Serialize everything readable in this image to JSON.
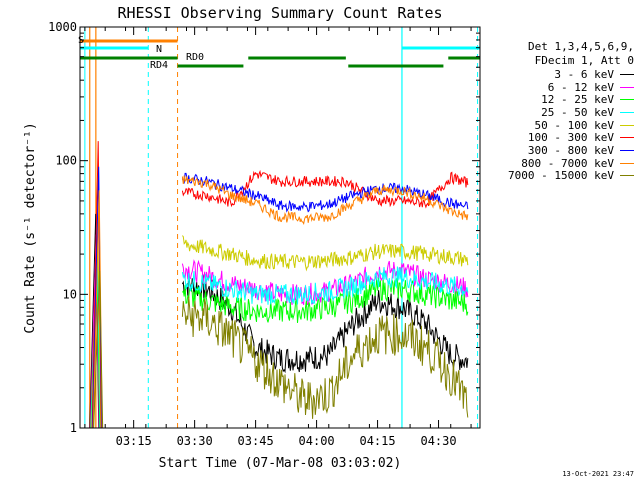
{
  "chart_data": {
    "type": "line",
    "title": "RHESSI Observing Summary Count Rates",
    "xlabel": "Start Time (07-Mar-08 03:03:02)",
    "ylabel": "Count Rate (s⁻¹ detector⁻¹)",
    "yscale": "log",
    "ylim": [
      1,
      1000
    ],
    "xlim_minutes": [
      3.03,
      4.67
    ],
    "yticks": [
      {
        "value": 1,
        "label": "1"
      },
      {
        "value": 10,
        "label": "10"
      },
      {
        "value": 100,
        "label": "100"
      },
      {
        "value": 1000,
        "label": "1000"
      }
    ],
    "xticks": [
      {
        "t": 3.25,
        "label": "03:15"
      },
      {
        "t": 3.5,
        "label": "03:30"
      },
      {
        "t": 3.75,
        "label": "03:45"
      },
      {
        "t": 4.0,
        "label": "04:00"
      },
      {
        "t": 4.25,
        "label": "04:15"
      },
      {
        "t": 4.5,
        "label": "04:30"
      }
    ],
    "legend_header": [
      "Det 1,3,4,5,6,9,",
      "FDecim 1, Att 0"
    ],
    "series": [
      {
        "name": "3 - 6 keV",
        "color": "#000000",
        "points": [
          [
            3.45,
            12
          ],
          [
            3.55,
            11
          ],
          [
            3.65,
            8
          ],
          [
            3.75,
            4
          ],
          [
            3.85,
            3.3
          ],
          [
            3.95,
            3.3
          ],
          [
            4.05,
            3.5
          ],
          [
            4.15,
            6
          ],
          [
            4.25,
            9
          ],
          [
            4.35,
            8
          ],
          [
            4.45,
            6
          ],
          [
            4.55,
            3.5
          ],
          [
            4.62,
            3.2
          ]
        ]
      },
      {
        "name": "6 - 12 keV",
        "color": "#ff00ff",
        "points": [
          [
            3.45,
            16
          ],
          [
            3.55,
            14
          ],
          [
            3.65,
            12
          ],
          [
            3.75,
            11
          ],
          [
            3.85,
            10
          ],
          [
            3.95,
            10
          ],
          [
            4.05,
            10.5
          ],
          [
            4.15,
            12
          ],
          [
            4.25,
            15
          ],
          [
            4.35,
            15
          ],
          [
            4.45,
            13
          ],
          [
            4.55,
            12
          ],
          [
            4.62,
            11
          ]
        ]
      },
      {
        "name": "12 - 25 keV",
        "color": "#00ff00",
        "points": [
          [
            3.45,
            10
          ],
          [
            3.55,
            9
          ],
          [
            3.65,
            8
          ],
          [
            3.75,
            7.5
          ],
          [
            3.85,
            7.5
          ],
          [
            3.95,
            7.5
          ],
          [
            4.05,
            8
          ],
          [
            4.15,
            9
          ],
          [
            4.25,
            11
          ],
          [
            4.35,
            11
          ],
          [
            4.45,
            10
          ],
          [
            4.55,
            9
          ],
          [
            4.62,
            8.5
          ]
        ]
      },
      {
        "name": "25 - 50 keV",
        "color": "#00ffff",
        "points": [
          [
            3.45,
            13
          ],
          [
            3.55,
            12
          ],
          [
            3.65,
            11
          ],
          [
            3.75,
            10
          ],
          [
            3.85,
            10
          ],
          [
            3.95,
            10
          ],
          [
            4.05,
            10.5
          ],
          [
            4.15,
            11.5
          ],
          [
            4.25,
            13.5
          ],
          [
            4.35,
            13.5
          ],
          [
            4.45,
            12.5
          ],
          [
            4.55,
            11.5
          ],
          [
            4.62,
            11
          ]
        ]
      },
      {
        "name": "50 - 100 keV",
        "color": "#cccc00",
        "points": [
          [
            3.45,
            24
          ],
          [
            3.55,
            22
          ],
          [
            3.65,
            20
          ],
          [
            3.75,
            18
          ],
          [
            3.85,
            17.5
          ],
          [
            3.95,
            17.5
          ],
          [
            4.05,
            18
          ],
          [
            4.15,
            19
          ],
          [
            4.25,
            21
          ],
          [
            4.35,
            21
          ],
          [
            4.45,
            20
          ],
          [
            4.55,
            19
          ],
          [
            4.62,
            18
          ]
        ]
      },
      {
        "name": "100 - 300 keV",
        "color": "#ff0000",
        "points": [
          [
            3.45,
            58
          ],
          [
            3.55,
            55
          ],
          [
            3.65,
            48
          ],
          [
            3.75,
            80
          ],
          [
            3.85,
            70
          ],
          [
            3.95,
            70
          ],
          [
            4.05,
            70
          ],
          [
            4.12,
            70
          ],
          [
            4.25,
            50
          ],
          [
            4.35,
            50
          ],
          [
            4.45,
            48
          ],
          [
            4.55,
            75
          ],
          [
            4.62,
            68
          ]
        ]
      },
      {
        "name": "300 - 800 keV",
        "color": "#0000ff",
        "points": [
          [
            3.45,
            75
          ],
          [
            3.55,
            70
          ],
          [
            3.65,
            62
          ],
          [
            3.75,
            55
          ],
          [
            3.85,
            46
          ],
          [
            3.95,
            45
          ],
          [
            4.05,
            47
          ],
          [
            4.15,
            55
          ],
          [
            4.25,
            62
          ],
          [
            4.35,
            62
          ],
          [
            4.45,
            55
          ],
          [
            4.55,
            48
          ],
          [
            4.62,
            45
          ]
        ]
      },
      {
        "name": "800 - 7000 keV",
        "color": "#ff8000",
        "points": [
          [
            3.45,
            72
          ],
          [
            3.55,
            68
          ],
          [
            3.65,
            55
          ],
          [
            3.75,
            48
          ],
          [
            3.85,
            38
          ],
          [
            3.95,
            37
          ],
          [
            4.05,
            38
          ],
          [
            4.15,
            48
          ],
          [
            4.25,
            60
          ],
          [
            4.35,
            60
          ],
          [
            4.45,
            52
          ],
          [
            4.55,
            42
          ],
          [
            4.62,
            38
          ]
        ]
      },
      {
        "name": "7000 - 15000 keV",
        "color": "#808000",
        "points": [
          [
            3.45,
            7
          ],
          [
            3.55,
            6.5
          ],
          [
            3.65,
            4.8
          ],
          [
            3.75,
            3.2
          ],
          [
            3.85,
            2.2
          ],
          [
            3.95,
            1.6
          ],
          [
            4.05,
            1.8
          ],
          [
            4.15,
            3.5
          ],
          [
            4.25,
            5
          ],
          [
            4.35,
            5
          ],
          [
            4.45,
            4
          ],
          [
            4.55,
            2.5
          ],
          [
            4.62,
            1.5
          ]
        ]
      }
    ],
    "flags": [
      {
        "label": "S",
        "color": "#ff8000"
      },
      {
        "label": "N",
        "color": "#00ffff"
      },
      {
        "label": "RD0",
        "color": "#008000"
      },
      {
        "label": "RD4",
        "color": "#008000"
      }
    ],
    "timestamp": "13-Oct-2021 23:47"
  }
}
